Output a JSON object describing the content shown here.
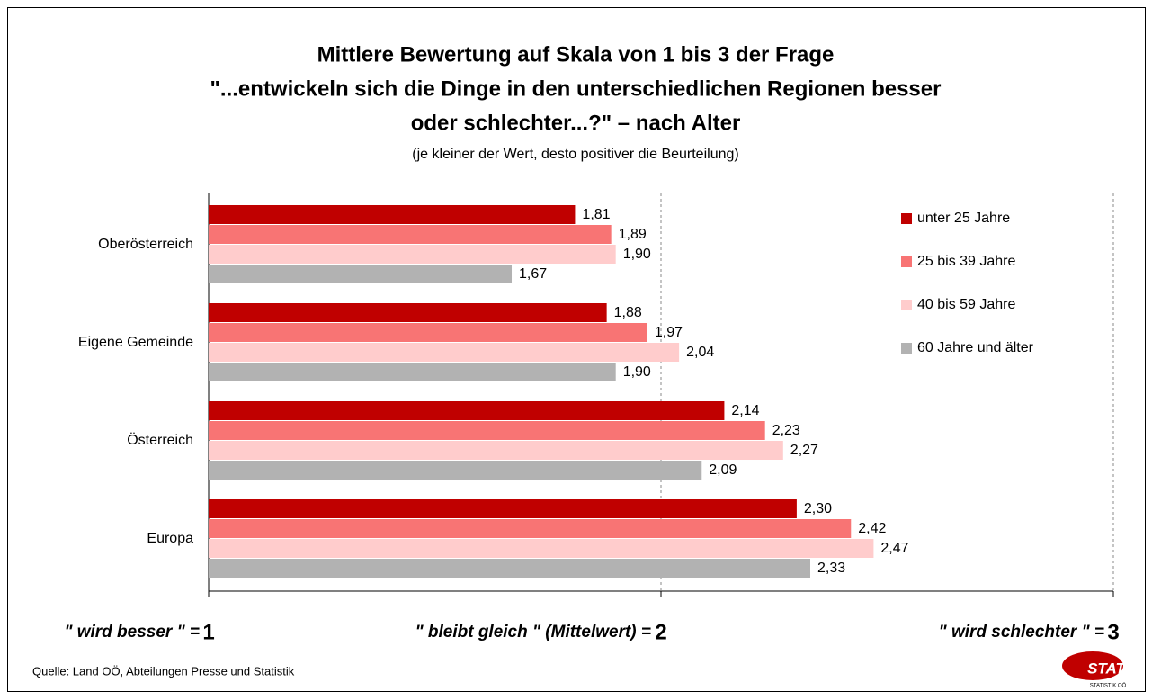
{
  "chart_data": {
    "type": "bar",
    "orientation": "horizontal",
    "title": [
      "Mittlere Bewertung auf Skala von 1 bis 3 der Frage",
      "\"...entwickeln sich die Dinge in den unterschiedlichen Regionen besser",
      "oder schlechter...?\" – nach Alter"
    ],
    "subtitle": "(je kleiner der Wert, desto positiver die Beurteilung)",
    "categories": [
      "Oberösterreich",
      "Eigene Gemeinde",
      "Österreich",
      "Europa"
    ],
    "series": [
      {
        "name": "unter 25 Jahre",
        "color": "#c00000",
        "values": [
          1.81,
          1.88,
          2.14,
          2.3
        ],
        "value_labels": [
          "1,81",
          "1,88",
          "2,14",
          "2,30"
        ]
      },
      {
        "name": "25 bis 39 Jahre",
        "color": "#f87474",
        "values": [
          1.89,
          1.97,
          2.23,
          2.42
        ],
        "value_labels": [
          "1,89",
          "1,97",
          "2,23",
          "2,42"
        ]
      },
      {
        "name": "40 bis 59 Jahre",
        "color": "#ffcccc",
        "values": [
          1.9,
          2.04,
          2.27,
          2.47
        ],
        "value_labels": [
          "1,90",
          "2,04",
          "2,27",
          "2,47"
        ]
      },
      {
        "name": "60 Jahre und älter",
        "color": "#b2b2b2",
        "values": [
          1.67,
          1.9,
          2.09,
          2.33
        ],
        "value_labels": [
          "1,67",
          "1,90",
          "2,09",
          "2,33"
        ]
      }
    ],
    "xlim": [
      1,
      3
    ],
    "xticks": [
      1,
      2,
      3
    ],
    "grid": true,
    "legend": "upper right",
    "annotations": [
      "\" wird besser \" =",
      "\" bleibt gleich \" (Mittelwert) =",
      "\" wird schlechter \" ="
    ],
    "source": "Quelle: Land OÖ, Abteilungen Presse und Statistik",
    "logo": {
      "text": "STAT",
      "subtext": "STATISTIK OÖ"
    }
  }
}
